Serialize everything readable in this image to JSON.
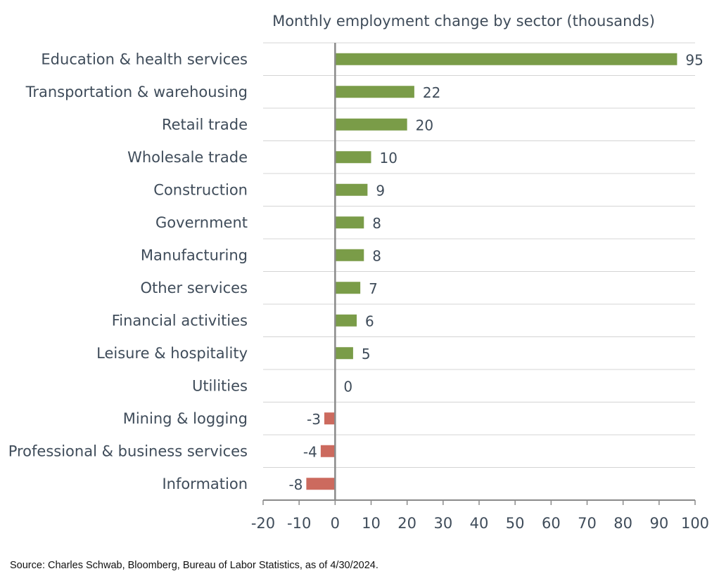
{
  "chart_data": {
    "type": "bar",
    "orientation": "horizontal",
    "title": "Monthly employment change by sector (thousands)",
    "categories": [
      "Education & health services",
      "Transportation & warehousing",
      "Retail trade",
      "Wholesale trade",
      "Construction",
      "Government",
      "Manufacturing",
      "Other services",
      "Financial activities",
      "Leisure & hospitality",
      "Utilities",
      "Mining & logging",
      "Professional & business services",
      "Information"
    ],
    "values": [
      95,
      22,
      20,
      10,
      9,
      8,
      8,
      7,
      6,
      5,
      0,
      -3,
      -4,
      -8
    ],
    "xlim": [
      -20,
      100
    ],
    "xticks": [
      -20,
      -10,
      0,
      10,
      20,
      30,
      40,
      50,
      60,
      70,
      80,
      90,
      100
    ],
    "xlabel": "",
    "ylabel": "",
    "grid": "horizontal-rows",
    "legend": "none",
    "colors": {
      "positive": "#7a9c48",
      "negative": "#cc6a5e",
      "grid": "#d4d4d4",
      "axis": "#8a8a8a",
      "text": "#3f4c5a"
    }
  },
  "source_note": "Source: Charles Schwab, Bloomberg, Bureau of Labor Statistics, as of 4/30/2024."
}
